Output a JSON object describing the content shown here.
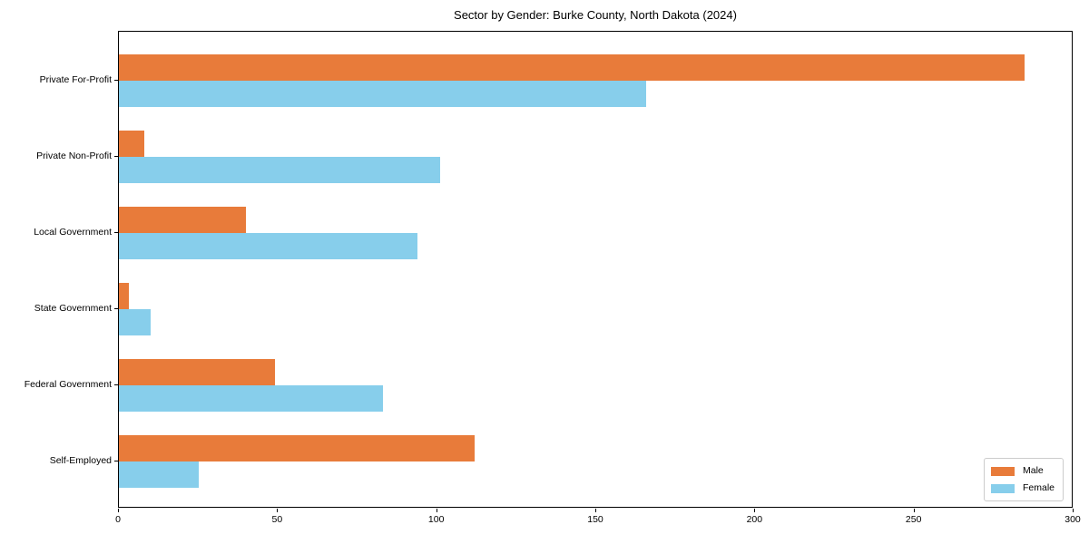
{
  "chart_data": {
    "type": "bar",
    "orientation": "horizontal",
    "title": "Sector by Gender: Burke County, North Dakota (2024)",
    "categories": [
      "Private For-Profit",
      "Private Non-Profit",
      "Local Government",
      "State Government",
      "Federal Government",
      "Self-Employed"
    ],
    "series": [
      {
        "name": "Male",
        "color": "#e87b3a",
        "values": [
          285,
          8,
          40,
          3,
          49,
          112
        ]
      },
      {
        "name": "Female",
        "color": "#87ceeb",
        "values": [
          166,
          101,
          94,
          10,
          83,
          25
        ]
      }
    ],
    "xlabel": "",
    "ylabel": "",
    "xlim": [
      0,
      300
    ],
    "xticks": [
      0,
      50,
      100,
      150,
      200,
      250,
      300
    ],
    "grid": false,
    "legend_position": "lower right",
    "axis_color": "#000000",
    "plot_background": "#ffffff"
  }
}
